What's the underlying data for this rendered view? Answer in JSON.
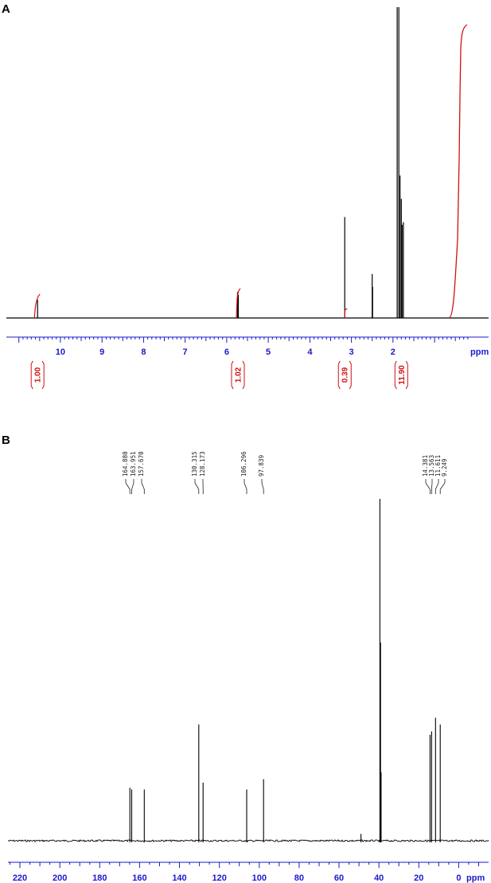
{
  "chart_data": [
    {
      "panel": "A",
      "type": "line",
      "xlabel": "ppm",
      "xlim": [
        11.3,
        -0.3
      ],
      "x_reversed": true,
      "ticks": [
        10,
        9,
        8,
        7,
        6,
        5,
        4,
        3,
        2
      ],
      "tick_labels": [
        "10",
        "9",
        "8",
        "7",
        "6",
        "5",
        "4",
        "3",
        "2"
      ],
      "peaks": [
        {
          "x": 10.55,
          "y": 0.07
        },
        {
          "x": 5.74,
          "y": 0.1
        },
        {
          "x": 5.72,
          "y": 0.09
        },
        {
          "x": 3.16,
          "y": 0.39
        },
        {
          "x": 2.5,
          "y": 0.17
        },
        {
          "x": 2.49,
          "y": 0.12
        },
        {
          "x": 1.9,
          "y": 1.2
        },
        {
          "x": 1.86,
          "y": 1.2
        },
        {
          "x": 1.83,
          "y": 0.55
        },
        {
          "x": 1.8,
          "y": 0.46
        },
        {
          "x": 1.78,
          "y": 0.36
        },
        {
          "x": 1.75,
          "y": 0.37
        }
      ],
      "integrals": [
        {
          "x": 10.55,
          "value": "1.00"
        },
        {
          "x": 5.73,
          "value": "1.02"
        },
        {
          "x": 3.16,
          "value": "0.39"
        },
        {
          "x": 1.8,
          "value": "11.90"
        }
      ],
      "colors": {
        "spectrum": "#000000",
        "axis": "#1a1acc",
        "integral": "#d01010"
      }
    },
    {
      "panel": "B",
      "type": "line",
      "xlabel": "ppm",
      "xlim": [
        226,
        -15
      ],
      "x_reversed": true,
      "ticks": [
        220,
        200,
        180,
        160,
        140,
        120,
        100,
        80,
        60,
        40,
        20,
        0
      ],
      "tick_labels": [
        "220",
        "200",
        "180",
        "160",
        "140",
        "120",
        "100",
        "80",
        "60",
        "40",
        "20",
        "0"
      ],
      "peaks": [
        {
          "x": 164.88,
          "y": 0.155
        },
        {
          "x": 163.951,
          "y": 0.15
        },
        {
          "x": 157.67,
          "y": 0.15
        },
        {
          "x": 130.315,
          "y": 0.34
        },
        {
          "x": 128.173,
          "y": 0.17
        },
        {
          "x": 106.296,
          "y": 0.15
        },
        {
          "x": 97.839,
          "y": 0.18
        },
        {
          "x": 49.0,
          "y": 0.02
        },
        {
          "x": 39.5,
          "y": 1.0
        },
        {
          "x": 39.2,
          "y": 0.58
        },
        {
          "x": 38.9,
          "y": 0.2
        },
        {
          "x": 14.381,
          "y": 0.31
        },
        {
          "x": 13.563,
          "y": 0.32
        },
        {
          "x": 11.611,
          "y": 0.36
        },
        {
          "x": 9.249,
          "y": 0.34
        }
      ],
      "peak_labels": [
        "164.880",
        "163.951",
        "157.670",
        "130.315",
        "128.173",
        "106.296",
        "97.839",
        "14.381",
        "13.563",
        "11.611",
        "9.249"
      ],
      "colors": {
        "spectrum": "#000000",
        "axis": "#1a1acc"
      }
    }
  ],
  "panels": {
    "a": {
      "label": "A",
      "unit": "ppm"
    },
    "b": {
      "label": "B",
      "unit": "ppm"
    }
  }
}
